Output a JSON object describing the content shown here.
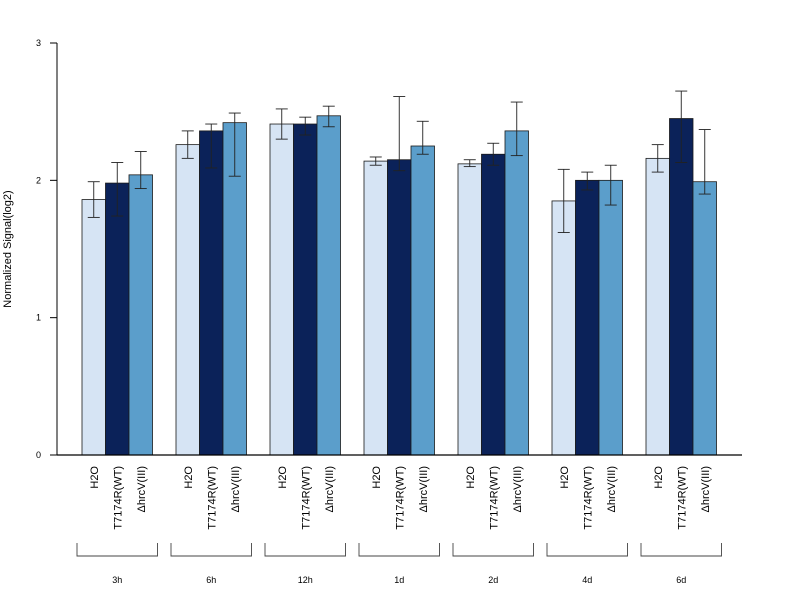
{
  "chart_data": {
    "type": "bar",
    "ylabel": "Normalized Signal(log2)",
    "ylim": [
      0,
      3
    ],
    "yticks": [
      "0",
      "1",
      "2",
      "3"
    ],
    "grid": false,
    "series_colors": [
      "#d6e4f4",
      "#0b2259",
      "#5b9ecb"
    ],
    "groups": [
      {
        "label": "3h",
        "bars": [
          {
            "name": "H2O",
            "value": 1.86,
            "err": [
              1.73,
              1.99
            ]
          },
          {
            "name": "T7174R(WT)",
            "value": 1.98,
            "err": [
              1.74,
              2.13
            ]
          },
          {
            "name": "ΔhrcV(III)",
            "value": 2.04,
            "err": [
              1.94,
              2.21
            ]
          }
        ]
      },
      {
        "label": "6h",
        "bars": [
          {
            "name": "H2O",
            "value": 2.26,
            "err": [
              2.16,
              2.36
            ]
          },
          {
            "name": "T7174R(WT)",
            "value": 2.36,
            "err": [
              2.09,
              2.41
            ]
          },
          {
            "name": "ΔhrcV(III)",
            "value": 2.42,
            "err": [
              2.03,
              2.49
            ]
          }
        ]
      },
      {
        "label": "12h",
        "bars": [
          {
            "name": "H2O",
            "value": 2.41,
            "err": [
              2.3,
              2.52
            ]
          },
          {
            "name": "T7174R(WT)",
            "value": 2.41,
            "err": [
              2.33,
              2.46
            ]
          },
          {
            "name": "ΔhrcV(III)",
            "value": 2.47,
            "err": [
              2.39,
              2.54
            ]
          }
        ]
      },
      {
        "label": "1d",
        "bars": [
          {
            "name": "H2O",
            "value": 2.14,
            "err": [
              2.11,
              2.17
            ]
          },
          {
            "name": "T7174R(WT)",
            "value": 2.15,
            "err": [
              2.07,
              2.61
            ]
          },
          {
            "name": "ΔhrcV(III)",
            "value": 2.25,
            "err": [
              2.19,
              2.43
            ]
          }
        ]
      },
      {
        "label": "2d",
        "bars": [
          {
            "name": "H2O",
            "value": 2.12,
            "err": [
              2.1,
              2.15
            ]
          },
          {
            "name": "T7174R(WT)",
            "value": 2.19,
            "err": [
              2.11,
              2.27
            ]
          },
          {
            "name": "ΔhrcV(III)",
            "value": 2.36,
            "err": [
              2.18,
              2.57
            ]
          }
        ]
      },
      {
        "label": "4d",
        "bars": [
          {
            "name": "H2O",
            "value": 1.85,
            "err": [
              1.62,
              2.08
            ]
          },
          {
            "name": "T7174R(WT)",
            "value": 2.0,
            "err": [
              1.93,
              2.06
            ]
          },
          {
            "name": "ΔhrcV(III)",
            "value": 2.0,
            "err": [
              1.82,
              2.11
            ]
          }
        ]
      },
      {
        "label": "6d",
        "bars": [
          {
            "name": "H2O",
            "value": 2.16,
            "err": [
              2.06,
              2.26
            ]
          },
          {
            "name": "T7174R(WT)",
            "value": 2.45,
            "err": [
              2.13,
              2.65
            ]
          },
          {
            "name": "ΔhrcV(III)",
            "value": 1.99,
            "err": [
              1.9,
              2.37
            ]
          }
        ]
      }
    ]
  }
}
